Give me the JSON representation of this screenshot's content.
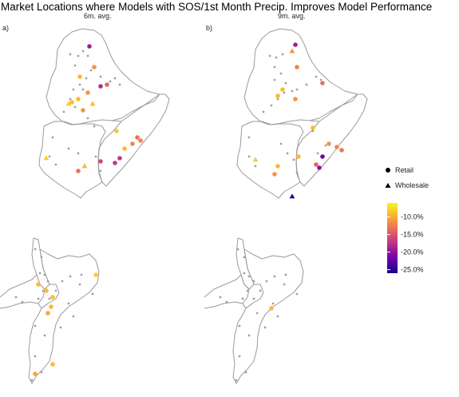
{
  "title": "Market Locations where Models with SOS/1st Month Precip. Improves Model Performance",
  "panels": [
    {
      "tag": "a)",
      "subtitle": "6m. avg."
    },
    {
      "tag": "b)",
      "subtitle": "9m. avg."
    }
  ],
  "legend_shape": {
    "items": [
      {
        "label": "Retail",
        "shape": "circle"
      },
      {
        "label": "Wholesale",
        "shape": "triangle"
      }
    ]
  },
  "legend_color": {
    "ticks": [
      "-10.0%",
      "-15.0%",
      "-20.0%",
      "-25.0%"
    ],
    "tick_values": [
      -10,
      -15,
      -20,
      -25
    ],
    "range": [
      -26,
      -6
    ],
    "colors": [
      "#0d0887",
      "#5402a3",
      "#8b0aa5",
      "#b93289",
      "#db5c68",
      "#f48849",
      "#febc2a",
      "#f0f921"
    ]
  },
  "colors": {
    "outline": "#9a9a9a",
    "non_improved_market": "#a0a0a0"
  }
}
